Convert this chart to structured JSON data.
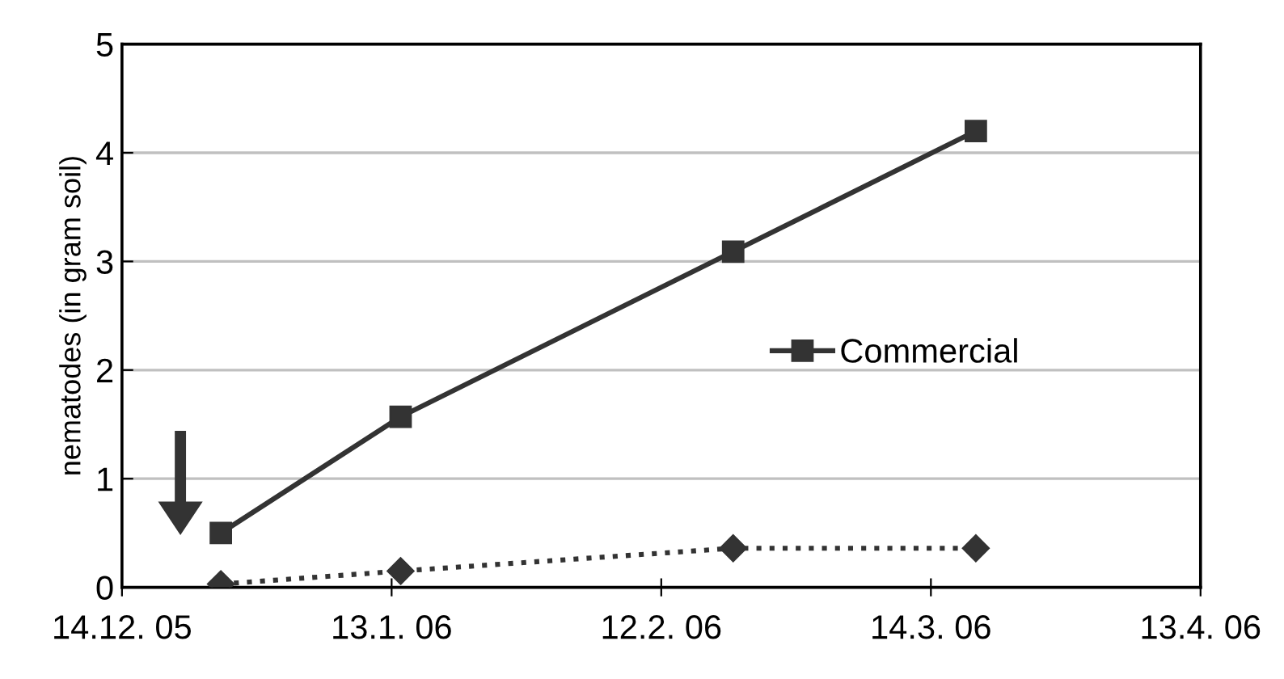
{
  "chart_data": {
    "type": "line",
    "ylabel": "nematodes (in gram soil)",
    "x": [
      "2005-12-25",
      "2006-01-14",
      "2006-02-20",
      "2006-03-19"
    ],
    "series": [
      {
        "color": "#333333",
        "marker": "diamond",
        "line_style": "dotted",
        "values": [
          0.03,
          0.15,
          0.36,
          0.36
        ]
      },
      {
        "name": "Commercial",
        "color": "#333333",
        "marker": "square",
        "line_style": "solid",
        "values": [
          0.5,
          1.57,
          3.09,
          4.2
        ]
      }
    ],
    "xlim": [
      "2005-12-14",
      "2006-04-13"
    ],
    "xticks": [
      {
        "value": "2005-12-14",
        "label": "14.12. 05"
      },
      {
        "value": "2006-01-13",
        "label": "13.1. 06"
      },
      {
        "value": "2006-02-12",
        "label": "12.2. 06"
      },
      {
        "value": "2006-03-14",
        "label": "14.3. 06"
      },
      {
        "value": "2006-04-13",
        "label": "13.4. 06"
      }
    ],
    "ylim": [
      0,
      5
    ],
    "yticks": [
      0,
      1,
      2,
      3,
      4,
      5
    ],
    "grid": "y",
    "legend": "right"
  }
}
